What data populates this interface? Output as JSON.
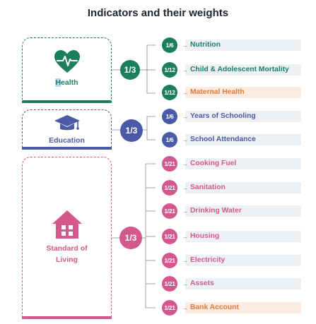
{
  "title": "Indicators and their weights",
  "colors": {
    "health": "#1b7f5e",
    "education": "#4a5aa6",
    "living": "#d4588e",
    "maternal_text": "#e07a3c",
    "row_bg": "#eef1f4",
    "row_bg_highlight": "#fbebe0"
  },
  "dimensions": {
    "health": {
      "label_first": "H",
      "label_rest": "ealth",
      "weight": "1/3",
      "icon": "heart-pulse-icon"
    },
    "education": {
      "label": "Education",
      "weight": "1/3",
      "icon": "graduation-cap-icon"
    },
    "living": {
      "label_line1": "Standard of",
      "label_line2": "Living",
      "weight": "1/3",
      "icon": "house-icon"
    }
  },
  "indicators": {
    "nutrition": {
      "weight": "1/6",
      "label": "Nutrition"
    },
    "child_mortality": {
      "weight": "1/12",
      "label": "Child & Adolescent Mortality"
    },
    "maternal_health": {
      "weight": "1/12",
      "label": "Maternal Health"
    },
    "schooling": {
      "weight": "1/6",
      "label": "Years of Schooling"
    },
    "attendance": {
      "weight": "1/6",
      "label": "School Attendance"
    },
    "cooking_fuel": {
      "weight": "1/21",
      "label": "Cooking Fuel"
    },
    "sanitation": {
      "weight": "1/21",
      "label": "Sanitation"
    },
    "drinking_water": {
      "weight": "1/21",
      "label": "Drinking Water"
    },
    "housing": {
      "weight": "1/21",
      "label": "Housing"
    },
    "electricity": {
      "weight": "1/21",
      "label": "Electricity"
    },
    "assets": {
      "weight": "1/21",
      "label": "Assets"
    },
    "bank_account": {
      "weight": "1/21",
      "label": "Bank Account"
    }
  }
}
